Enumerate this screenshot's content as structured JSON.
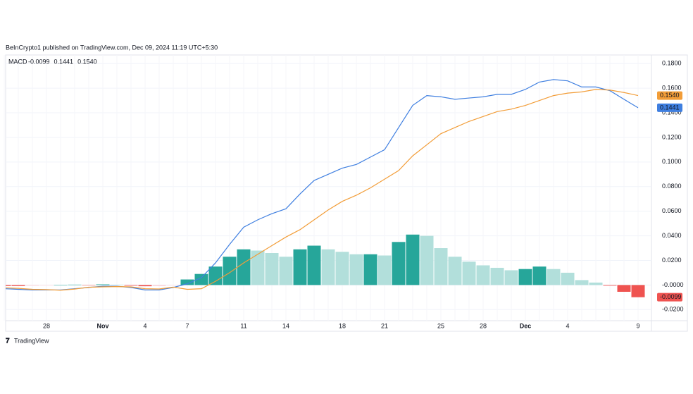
{
  "header": "BeInCrypto1 published on TradingView.com, Dec 09, 2024 11:19 UTC+5:30",
  "footer": "TradingView",
  "chart_data": {
    "type": "bar",
    "legend_title": "MACD",
    "categories": [
      null,
      null,
      null,
      "28",
      null,
      null,
      null,
      "Nov",
      null,
      null,
      "4",
      null,
      null,
      "7",
      null,
      null,
      null,
      "11",
      null,
      null,
      "14",
      null,
      null,
      null,
      "18",
      null,
      null,
      "21",
      null,
      null,
      null,
      "25",
      null,
      null,
      "28",
      null,
      null,
      "Dec",
      null,
      null,
      "4",
      null,
      null,
      null,
      null,
      "9"
    ],
    "ylim": [
      -0.029,
      0.187
    ],
    "yticks": [
      {
        "value": 0.18,
        "label": "0.1800"
      },
      {
        "value": 0.16,
        "label": "0.1600"
      },
      {
        "value": 0.14,
        "label": "0.1400"
      },
      {
        "value": 0.12,
        "label": "0.1200"
      },
      {
        "value": 0.1,
        "label": "0.1000"
      },
      {
        "value": 0.08,
        "label": "0.0800"
      },
      {
        "value": 0.06,
        "label": "0.0600"
      },
      {
        "value": 0.04,
        "label": "0.0400"
      },
      {
        "value": 0.02,
        "label": "0.0200"
      },
      {
        "value": 0,
        "label": "-0.0000"
      },
      {
        "value": -0.02,
        "label": "-0.0200"
      }
    ],
    "grid": true,
    "series": [
      {
        "type": "bar",
        "color": "#ef5350",
        "last_label": {
          "value": -0.0099,
          "label": "-0.0099"
        },
        "values": [
          -0.0008,
          -0.0008,
          -0.0005,
          -0.0003,
          0.0002,
          0.0003,
          -0.0002,
          0.0005,
          0.0003,
          -0.0005,
          -0.001,
          -0.0008,
          -0.0003,
          0.0045,
          0.009,
          0.015,
          0.023,
          0.029,
          0.028,
          0.026,
          0.023,
          0.029,
          0.032,
          0.029,
          0.027,
          0.025,
          0.025,
          0.024,
          0.035,
          0.041,
          0.04,
          0.03,
          0.023,
          0.019,
          0.016,
          0.014,
          0.012,
          0.013,
          0.015,
          0.013,
          0.01,
          0.004,
          0.002,
          -0.0005,
          -0.0055,
          -0.0099
        ],
        "colors": [
          "#ef5350",
          "#ef5350",
          "#ffcdd2",
          "#ffcdd2",
          "#26a69a",
          "#26a69a",
          "#ef5350",
          "#26a69a",
          "#b2dfdb",
          "#ef5350",
          "#ef5350",
          "#ffcdd2",
          "#ffcdd2",
          "#26a69a",
          "#26a69a",
          "#26a69a",
          "#26a69a",
          "#26a69a",
          "#b2dfdb",
          "#b2dfdb",
          "#b2dfdb",
          "#26a69a",
          "#26a69a",
          "#b2dfdb",
          "#b2dfdb",
          "#b2dfdb",
          "#26a69a",
          "#b2dfdb",
          "#26a69a",
          "#26a69a",
          "#b2dfdb",
          "#b2dfdb",
          "#b2dfdb",
          "#b2dfdb",
          "#b2dfdb",
          "#b2dfdb",
          "#b2dfdb",
          "#26a69a",
          "#26a69a",
          "#b2dfdb",
          "#b2dfdb",
          "#b2dfdb",
          "#b2dfdb",
          "#ef5350",
          "#ef5350",
          "#ef5350"
        ]
      },
      {
        "type": "line",
        "color": "#3f7fe0",
        "last_label": {
          "value": 0.1441,
          "label": "0.1441"
        },
        "values": [
          -0.003,
          -0.0035,
          -0.004,
          -0.004,
          -0.004,
          -0.003,
          -0.002,
          -0.001,
          -0.001,
          -0.002,
          -0.004,
          -0.004,
          -0.002,
          0.001,
          0.006,
          0.018,
          0.033,
          0.047,
          0.053,
          0.058,
          0.062,
          0.074,
          0.085,
          0.09,
          0.095,
          0.098,
          0.104,
          0.11,
          0.128,
          0.146,
          0.154,
          0.153,
          0.151,
          0.152,
          0.153,
          0.155,
          0.155,
          0.159,
          0.165,
          0.167,
          0.166,
          0.161,
          0.161,
          0.158,
          0.151,
          0.1441
        ]
      },
      {
        "type": "line",
        "color": "#f29d38",
        "last_label": {
          "value": 0.154,
          "label": "0.1540"
        },
        "values": [
          -0.0022,
          -0.0027,
          -0.0035,
          -0.0037,
          -0.0042,
          -0.0033,
          -0.0018,
          -0.0015,
          -0.0013,
          -0.0015,
          -0.003,
          -0.0032,
          -0.0017,
          -0.0035,
          -0.003,
          0.003,
          0.01,
          0.018,
          0.025,
          0.032,
          0.039,
          0.045,
          0.053,
          0.061,
          0.068,
          0.073,
          0.079,
          0.086,
          0.093,
          0.105,
          0.114,
          0.123,
          0.128,
          0.133,
          0.137,
          0.141,
          0.143,
          0.146,
          0.15,
          0.154,
          0.156,
          0.157,
          0.159,
          0.1585,
          0.1565,
          0.154
        ]
      }
    ]
  }
}
